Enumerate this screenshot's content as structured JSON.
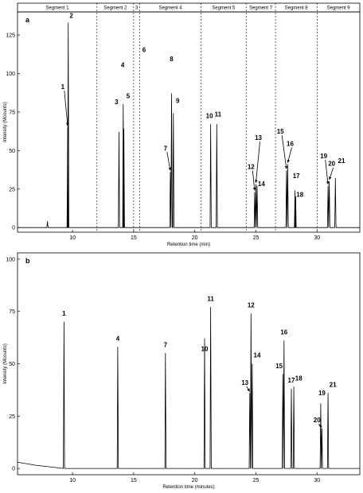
{
  "chart_data": [
    {
      "type": "line",
      "panel_label": "a",
      "xlabel": "Retention time (min)",
      "ylabel": "Intensity (Mcounts)",
      "xlim": [
        5.5,
        33.5
      ],
      "ylim": [
        -3,
        140
      ],
      "xticks": [
        10,
        15,
        20,
        25,
        30
      ],
      "yticks": [
        0,
        25,
        50,
        75,
        100,
        125
      ],
      "segment_boundaries": [
        12.0,
        15.0,
        15.5,
        20.5,
        24.2,
        26.6,
        30.0
      ],
      "segments": [
        {
          "label": "Segment 1",
          "from": 5.5,
          "to": 12.0
        },
        {
          "label": "Segment 2",
          "from": 12.0,
          "to": 15.0
        },
        {
          "label": "3",
          "from": 15.0,
          "to": 15.5
        },
        {
          "label": "Segment 4",
          "from": 15.5,
          "to": 20.5
        },
        {
          "label": "Segment 5",
          "from": 20.5,
          "to": 24.2
        },
        {
          "label": "Segment 7",
          "from": 24.2,
          "to": 26.6
        },
        {
          "label": "Segment 8",
          "from": 26.6,
          "to": 30.0
        },
        {
          "label": "Segment 9",
          "from": 30.0,
          "to": 33.5
        }
      ],
      "peaks": [
        {
          "label": "1",
          "x": 9.6,
          "y": 65,
          "lx": 9.2,
          "ly": 90,
          "arrow": true
        },
        {
          "label": "2",
          "x": 9.65,
          "y": 133,
          "lx": 9.9,
          "ly": 136,
          "arrow": false
        },
        {
          "label": "3",
          "x": 13.8,
          "y": 62,
          "lx": 13.6,
          "ly": 80,
          "arrow": false
        },
        {
          "label": "4",
          "x": 14.15,
          "y": 80,
          "lx": 14.1,
          "ly": 104,
          "arrow": false
        },
        {
          "label": "5",
          "x": 14.2,
          "y": 64,
          "lx": 14.55,
          "ly": 84,
          "arrow": false
        },
        {
          "label": "6",
          "x": 15.7,
          "y": 0,
          "lx": 15.85,
          "ly": 114,
          "arrow": false
        },
        {
          "label": "7",
          "x": 18.0,
          "y": 36,
          "lx": 17.6,
          "ly": 50,
          "arrow": true
        },
        {
          "label": "8",
          "x": 18.1,
          "y": 87,
          "lx": 18.1,
          "ly": 108,
          "arrow": false
        },
        {
          "label": "9",
          "x": 18.25,
          "y": 74,
          "lx": 18.6,
          "ly": 81,
          "arrow": false
        },
        {
          "label": "10",
          "x": 21.3,
          "y": 67,
          "lx": 21.2,
          "ly": 71,
          "arrow": false
        },
        {
          "label": "11",
          "x": 21.8,
          "y": 67,
          "lx": 21.9,
          "ly": 72,
          "arrow": false
        },
        {
          "label": "12",
          "x": 24.9,
          "y": 23,
          "lx": 24.6,
          "ly": 38,
          "arrow": true
        },
        {
          "label": "13",
          "x": 25.0,
          "y": 28,
          "lx": 25.2,
          "ly": 57,
          "arrow": true
        },
        {
          "label": "14",
          "x": 25.1,
          "y": 27,
          "lx": 25.45,
          "ly": 27,
          "arrow": false
        },
        {
          "label": "15",
          "x": 27.5,
          "y": 37,
          "lx": 27.0,
          "ly": 61,
          "arrow": true
        },
        {
          "label": "16",
          "x": 27.6,
          "y": 41,
          "lx": 27.8,
          "ly": 53,
          "arrow": true
        },
        {
          "label": "17",
          "x": 28.2,
          "y": 24,
          "lx": 28.3,
          "ly": 32,
          "arrow": false
        },
        {
          "label": "18",
          "x": 28.25,
          "y": 20,
          "lx": 28.6,
          "ly": 20,
          "arrow": false
        },
        {
          "label": "19",
          "x": 30.9,
          "y": 27,
          "lx": 30.55,
          "ly": 45,
          "arrow": true
        },
        {
          "label": "20",
          "x": 31.0,
          "y": 30,
          "lx": 31.2,
          "ly": 40,
          "arrow": true
        },
        {
          "label": "21",
          "x": 31.5,
          "y": 32,
          "lx": 32.0,
          "ly": 42,
          "arrow": false
        }
      ]
    },
    {
      "type": "line",
      "panel_label": "b",
      "xlabel": "Retention time (minutes)",
      "ylabel": "Intensity (Mcounts)",
      "xlim": [
        5.5,
        33.5
      ],
      "ylim": [
        -3,
        103
      ],
      "xticks": [
        10,
        15,
        20,
        25,
        30
      ],
      "yticks": [
        0,
        25,
        50,
        75,
        100
      ],
      "peaks": [
        {
          "label": "1",
          "x": 9.3,
          "y": 70,
          "lx": 9.3,
          "ly": 73,
          "arrow": false
        },
        {
          "label": "4",
          "x": 13.7,
          "y": 58,
          "lx": 13.7,
          "ly": 61,
          "arrow": false
        },
        {
          "label": "7",
          "x": 17.6,
          "y": 55,
          "lx": 17.6,
          "ly": 58,
          "arrow": false
        },
        {
          "label": "10",
          "x": 20.8,
          "y": 62,
          "lx": 20.8,
          "ly": 56,
          "arrow": false
        },
        {
          "label": "11",
          "x": 21.3,
          "y": 77,
          "lx": 21.3,
          "ly": 80,
          "arrow": false
        },
        {
          "label": "12",
          "x": 24.6,
          "y": 74,
          "lx": 24.6,
          "ly": 77,
          "arrow": false
        },
        {
          "label": "13",
          "x": 24.5,
          "y": 36,
          "lx": 24.1,
          "ly": 40,
          "arrow": true
        },
        {
          "label": "14",
          "x": 24.7,
          "y": 50,
          "lx": 25.1,
          "ly": 53,
          "arrow": false
        },
        {
          "label": "15",
          "x": 27.2,
          "y": 45,
          "lx": 26.9,
          "ly": 48,
          "arrow": false
        },
        {
          "label": "16",
          "x": 27.3,
          "y": 61,
          "lx": 27.3,
          "ly": 64,
          "arrow": false
        },
        {
          "label": "17",
          "x": 27.9,
          "y": 38,
          "lx": 27.9,
          "ly": 41,
          "arrow": false
        },
        {
          "label": "18",
          "x": 28.1,
          "y": 39,
          "lx": 28.5,
          "ly": 42,
          "arrow": false
        },
        {
          "label": "19",
          "x": 30.3,
          "y": 31,
          "lx": 30.4,
          "ly": 35,
          "arrow": false
        },
        {
          "label": "20",
          "x": 30.4,
          "y": 19,
          "lx": 30.0,
          "ly": 22,
          "arrow": true
        },
        {
          "label": "21",
          "x": 30.9,
          "y": 36,
          "lx": 31.3,
          "ly": 39,
          "arrow": false
        }
      ]
    }
  ]
}
